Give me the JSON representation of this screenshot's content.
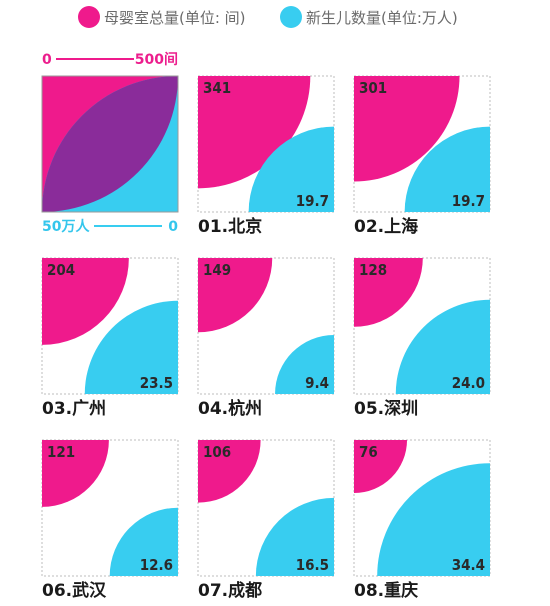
{
  "legend": {
    "pink_label": "母婴室总量(单位: 间)",
    "cyan_label": "新生儿数量(单位:万人)"
  },
  "colors": {
    "pink": "#ef1a8c",
    "cyan": "#38cdf0",
    "overlap": "#8a2c9a",
    "border": "#bdbdbd"
  },
  "key": {
    "pink_min": "0",
    "pink_max": "500间",
    "cyan_max": "50万人",
    "cyan_min": "0"
  },
  "chart_data": {
    "type": "quarter-circle-pairs",
    "series": [
      {
        "name": "母婴室总量",
        "unit": "间",
        "max": 500
      },
      {
        "name": "新生儿数量",
        "unit": "万人",
        "max": 50
      }
    ],
    "categories": [
      "01.北京",
      "02.上海",
      "03.广州",
      "04.杭州",
      "05.深圳",
      "06.武汉",
      "07.成都",
      "08.重庆"
    ],
    "rooms": [
      341,
      301,
      204,
      149,
      128,
      121,
      106,
      76
    ],
    "rooms_labels": [
      "341",
      "301",
      "204",
      "149",
      "128",
      "121",
      "106",
      "76"
    ],
    "newborns": [
      19.7,
      19.7,
      23.5,
      9.4,
      24.0,
      12.6,
      16.5,
      34.4
    ],
    "newborns_labels": [
      "19.7",
      "19.7",
      "23.5",
      "9.4",
      "24.0",
      "12.6",
      "16.5",
      "34.4"
    ]
  }
}
